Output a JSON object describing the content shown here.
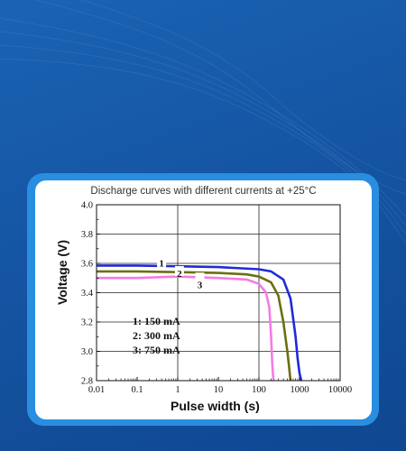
{
  "colors": {
    "series_1": "#1f2bd6",
    "series_2": "#6b6f10",
    "series_3": "#f47be6",
    "frame": "#2a8ee0",
    "background": "#1555a3"
  },
  "chart_data": {
    "type": "line",
    "title": "Discharge curves with different currents at +25°C",
    "xlabel": "Pulse width (s)",
    "ylabel": "Voltage (V)",
    "x_scale": "log",
    "xlim": [
      0.01,
      10000
    ],
    "ylim": [
      2.8,
      4.0
    ],
    "x_ticks": [
      "0.01",
      "0.1",
      "1",
      "10",
      "100",
      "1000",
      "10000"
    ],
    "y_ticks": [
      "2.8",
      "3.0",
      "3.2",
      "3.4",
      "3.6",
      "3.8",
      "4.0"
    ],
    "grid": "major vertical and horizontal lines",
    "series": [
      {
        "name": "1: 150 mA",
        "label": "1",
        "x": [
          0.01,
          0.1,
          1,
          10,
          100,
          200,
          400,
          600,
          800,
          900,
          1000,
          1100
        ],
        "y": [
          3.585,
          3.585,
          3.58,
          3.575,
          3.56,
          3.545,
          3.49,
          3.36,
          3.1,
          2.95,
          2.85,
          2.8
        ]
      },
      {
        "name": "2: 300 mA",
        "label": "2",
        "x": [
          0.01,
          0.1,
          1,
          10,
          50,
          100,
          200,
          300,
          400,
          500,
          550,
          600
        ],
        "y": [
          3.545,
          3.545,
          3.54,
          3.535,
          3.525,
          3.51,
          3.47,
          3.38,
          3.2,
          3.0,
          2.9,
          2.8
        ]
      },
      {
        "name": "3: 750 mA",
        "label": "3",
        "x": [
          0.01,
          0.1,
          1,
          10,
          50,
          100,
          150,
          180,
          200,
          210,
          220,
          230
        ],
        "y": [
          3.5,
          3.5,
          3.51,
          3.5,
          3.49,
          3.46,
          3.4,
          3.3,
          3.1,
          2.95,
          2.85,
          2.8
        ]
      }
    ],
    "legend": [
      "1: 150 mA",
      "2: 300 mA",
      "3: 750 mA"
    ],
    "legend_placement": "lower-left"
  }
}
